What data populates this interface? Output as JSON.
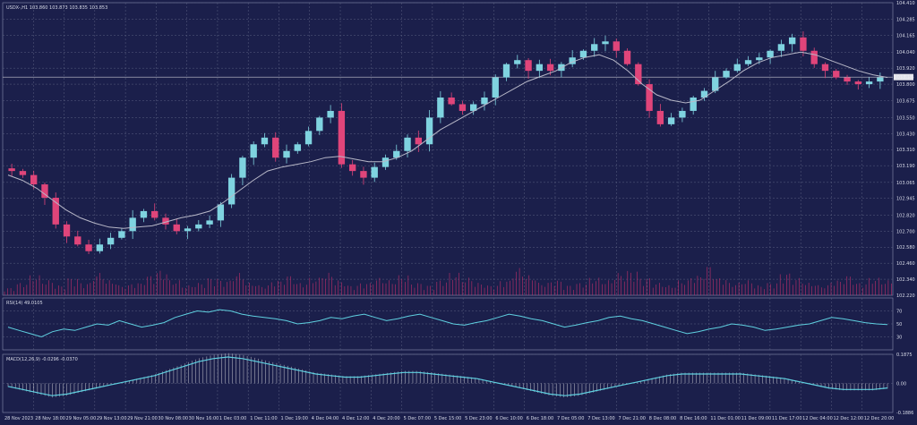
{
  "colors": {
    "background": "#1b1f4b",
    "grid": "#5a6080",
    "bull": "#7fd3e0",
    "bear": "#e0457a",
    "ma": "#b8b8c8",
    "rsi": "#5fd0e0",
    "macd_hist": "#c8c8d0",
    "macd_signal": "#5fd0e0",
    "text": "#d8dbe8",
    "volume": "#c0306a"
  },
  "chart_data": [
    {
      "type": "candlestick",
      "title": "USDX-,H1  103.860 103.873 103.835 103.853",
      "price_ticks": [
        "104.410",
        "104.285",
        "104.165",
        "104.040",
        "103.920",
        "103.853",
        "103.800",
        "103.675",
        "103.550",
        "103.430",
        "103.310",
        "103.190",
        "103.065",
        "102.945",
        "102.820",
        "102.700",
        "102.580",
        "102.460",
        "102.340",
        "102.220"
      ],
      "ylim": [
        102.22,
        104.41
      ],
      "last_price": 103.853,
      "x_labels": [
        "28 Nov 2023",
        "28 Nov 18:00",
        "29 Nov 05:00",
        "29 Nov 13:00",
        "29 Nov 21:00",
        "30 Nov 08:00",
        "30 Nov 16:00",
        "1 Dec 03:00",
        "1 Dec 11:00",
        "1 Dec 19:00",
        "4 Dec 04:00",
        "4 Dec 12:00",
        "4 Dec 20:00",
        "5 Dec 07:00",
        "5 Dec 15:00",
        "5 Dec 23:00",
        "6 Dec 10:00",
        "6 Dec 18:00",
        "7 Dec 05:00",
        "7 Dec 13:00",
        "7 Dec 21:00",
        "8 Dec 08:00",
        "8 Dec 16:00",
        "11 Dec 01:00",
        "11 Dec 09:00",
        "11 Dec 17:00",
        "12 Dec 04:00",
        "12 Dec 12:00",
        "12 Dec 20:00"
      ],
      "close_path": [
        103.15,
        103.12,
        103.05,
        102.95,
        102.75,
        102.66,
        102.6,
        102.55,
        102.6,
        102.65,
        102.7,
        102.8,
        102.85,
        102.8,
        102.75,
        102.7,
        102.72,
        102.75,
        102.78,
        102.9,
        103.1,
        103.25,
        103.35,
        103.4,
        103.25,
        103.3,
        103.35,
        103.45,
        103.55,
        103.6,
        103.2,
        103.15,
        103.1,
        103.18,
        103.25,
        103.3,
        103.4,
        103.35,
        103.55,
        103.7,
        103.65,
        103.6,
        103.65,
        103.7,
        103.85,
        103.95,
        103.98,
        103.9,
        103.95,
        103.9,
        103.95,
        104.0,
        104.05,
        104.1,
        104.12,
        104.05,
        103.95,
        103.8,
        103.6,
        103.5,
        103.55,
        103.6,
        103.7,
        103.75,
        103.85,
        103.9,
        103.95,
        103.98,
        104.0,
        104.05,
        104.1,
        104.15,
        104.05,
        103.95,
        103.9,
        103.85,
        103.82,
        103.8,
        103.82,
        103.85
      ],
      "ma_path": [
        103.12,
        103.08,
        103.02,
        102.94,
        102.86,
        102.8,
        102.76,
        102.73,
        102.72,
        102.73,
        102.74,
        102.77,
        102.8,
        102.82,
        102.85,
        102.92,
        103.0,
        103.08,
        103.15,
        103.18,
        103.2,
        103.22,
        103.25,
        103.26,
        103.24,
        103.22,
        103.22,
        103.25,
        103.3,
        103.38,
        103.46,
        103.52,
        103.58,
        103.64,
        103.7,
        103.76,
        103.82,
        103.86,
        103.9,
        103.96,
        104.0,
        104.02,
        103.98,
        103.9,
        103.8,
        103.72,
        103.68,
        103.66,
        103.68,
        103.75,
        103.82,
        103.9,
        103.96,
        104.0,
        104.02,
        104.04,
        104.02,
        103.98,
        103.94,
        103.9,
        103.87,
        103.85
      ],
      "volume": [
        0.3,
        0.5,
        0.8,
        0.6,
        0.4,
        0.7,
        0.5,
        0.9,
        0.6,
        0.4,
        0.5,
        0.8,
        1.0,
        0.6,
        0.4,
        0.5,
        0.7,
        0.6,
        0.9,
        0.5,
        0.4,
        0.6,
        0.8,
        0.5,
        0.7,
        0.9,
        0.6,
        0.4,
        0.5,
        0.7,
        0.6,
        0.8,
        0.5,
        0.4,
        0.6,
        0.9,
        0.7,
        0.5,
        0.4,
        0.6,
        1.1,
        0.8,
        0.5,
        0.6,
        0.4,
        0.5,
        0.7,
        0.6,
        0.9,
        1.0,
        0.7,
        0.5,
        0.4,
        0.6,
        0.8,
        1.2,
        0.7,
        0.5,
        0.6,
        0.4,
        0.5,
        0.9,
        0.7,
        0.5,
        0.4,
        0.6,
        0.8,
        0.5,
        0.7,
        0.6
      ]
    },
    {
      "type": "line",
      "title": "RSI(14) 49.0105",
      "y_ticks": [
        "70",
        "50",
        "30"
      ],
      "ylim": [
        10,
        90
      ],
      "values": [
        45,
        40,
        35,
        30,
        38,
        42,
        40,
        45,
        50,
        48,
        55,
        50,
        45,
        48,
        52,
        60,
        65,
        70,
        68,
        72,
        70,
        65,
        62,
        60,
        58,
        55,
        50,
        52,
        55,
        60,
        58,
        62,
        65,
        60,
        55,
        58,
        62,
        65,
        60,
        55,
        50,
        48,
        52,
        55,
        60,
        65,
        62,
        58,
        55,
        50,
        45,
        48,
        52,
        55,
        60,
        62,
        58,
        55,
        50,
        45,
        40,
        35,
        38,
        42,
        45,
        50,
        48,
        45,
        40,
        42,
        45,
        48,
        50,
        55,
        60,
        58,
        55,
        52,
        50,
        49
      ]
    },
    {
      "type": "bar",
      "title": "MACD(12,26,9) -0.0296 -0.0370",
      "y_ticks": [
        "0.1875",
        "0.00",
        "-0.1886"
      ],
      "ylim": [
        -0.1886,
        0.1875
      ],
      "signal": [
        -0.02,
        -0.04,
        -0.06,
        -0.08,
        -0.07,
        -0.05,
        -0.03,
        -0.01,
        0.01,
        0.03,
        0.05,
        0.08,
        0.11,
        0.14,
        0.16,
        0.17,
        0.16,
        0.14,
        0.12,
        0.1,
        0.08,
        0.06,
        0.05,
        0.04,
        0.04,
        0.05,
        0.06,
        0.07,
        0.07,
        0.06,
        0.05,
        0.04,
        0.03,
        0.01,
        -0.01,
        -0.03,
        -0.05,
        -0.07,
        -0.08,
        -0.07,
        -0.05,
        -0.03,
        -0.01,
        0.01,
        0.03,
        0.05,
        0.06,
        0.06,
        0.06,
        0.06,
        0.06,
        0.05,
        0.04,
        0.03,
        0.01,
        -0.01,
        -0.03,
        -0.04,
        -0.04,
        -0.04,
        -0.03
      ]
    }
  ]
}
